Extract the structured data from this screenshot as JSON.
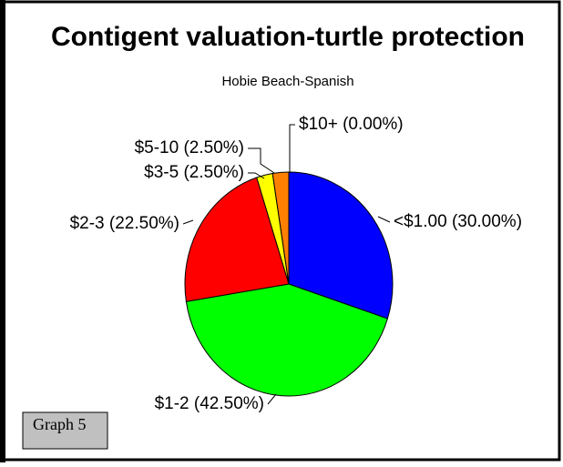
{
  "chart_data": {
    "type": "pie",
    "title": "Contigent valuation-turtle protection",
    "subtitle": "Hobie Beach-Spanish",
    "annotation": "Graph 5",
    "categories": [
      "<$1.00",
      "$1-2",
      "$2-3",
      "$3-5",
      "$5-10",
      "$10+"
    ],
    "values": [
      30,
      42.5,
      22.5,
      2.5,
      2.5,
      0
    ],
    "value_labels": [
      "(30.00%)",
      "(42.50%)",
      "(22.50%)",
      "(2.50%)",
      "(2.50%)",
      "(0.00%)"
    ],
    "colors": [
      "#0000ff",
      "#00ff00",
      "#ff0000",
      "#ffff00",
      "#ff8000",
      "#ff00ff"
    ]
  }
}
